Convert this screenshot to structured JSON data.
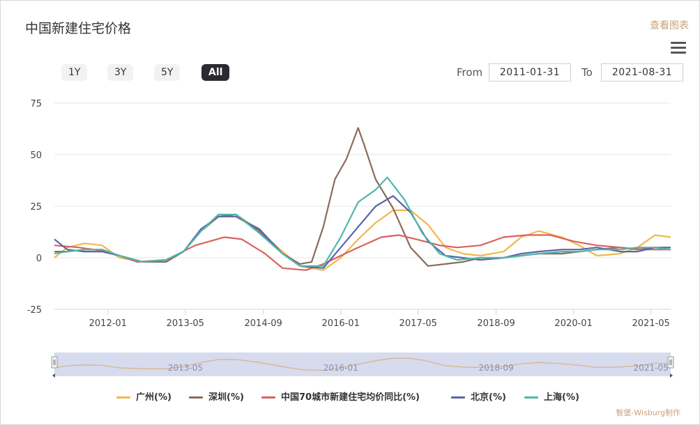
{
  "header": {
    "title": "中国新建住宅价格",
    "view_link": "查看图表"
  },
  "range_buttons": [
    "1Y",
    "3Y",
    "5Y",
    "All"
  ],
  "active_range": "All",
  "date_range": {
    "from_label": "From",
    "from_value": "2011-01-31",
    "to_label": "To",
    "to_value": "2021-08-31"
  },
  "credit": "智堡-Wisburg制作",
  "colors": {
    "guangzhou": "#f2b84b",
    "shenzhen": "#8b6b5c",
    "china70": "#d9625e",
    "beijing": "#5b63a8",
    "shanghai": "#4db8a8",
    "navigator_fill": "#cfd5ea",
    "navigator_line": "#d9b490"
  },
  "chart_data": {
    "type": "line",
    "title": "中国新建住宅价格",
    "x_range": [
      2011.08,
      2021.67
    ],
    "ylim": [
      -25,
      75
    ],
    "y_ticks": [
      -25,
      0,
      25,
      50,
      75
    ],
    "x_tick_labels": [
      "2012-01",
      "2013-05",
      "2014-09",
      "2016-01",
      "2017-05",
      "2018-09",
      "2020-01",
      "2021-05"
    ],
    "x_tick_values": [
      2012.0,
      2013.33,
      2014.67,
      2016.0,
      2017.33,
      2018.67,
      2020.0,
      2021.33
    ],
    "navigator_labels": [
      "2013-05",
      "2016-01",
      "2018-09",
      "2021-05"
    ],
    "legend_position": "bottom",
    "grid": true,
    "series": [
      {
        "name": "广州(%)",
        "color": "#f2b84b",
        "x": [
          2011.08,
          2011.3,
          2011.6,
          2011.9,
          2012.2,
          2012.6,
          2013.0,
          2013.3,
          2013.6,
          2013.9,
          2014.2,
          2014.6,
          2015.0,
          2015.3,
          2015.7,
          2016.0,
          2016.3,
          2016.6,
          2016.9,
          2017.2,
          2017.5,
          2017.8,
          2018.1,
          2018.4,
          2018.8,
          2019.1,
          2019.4,
          2019.8,
          2020.1,
          2020.4,
          2020.8,
          2021.1,
          2021.4,
          2021.67
        ],
        "y": [
          0,
          5,
          7,
          6,
          0,
          -2,
          -2,
          3,
          13,
          20,
          20,
          13,
          3,
          -4,
          -6,
          0,
          9,
          17,
          23,
          23,
          16,
          5,
          2,
          1,
          3,
          10,
          13,
          10,
          6,
          1,
          2,
          5,
          11,
          10
        ]
      },
      {
        "name": "深圳(%)",
        "color": "#8b6b5c",
        "x": [
          2011.08,
          2011.3,
          2011.6,
          2011.9,
          2012.2,
          2012.6,
          2013.0,
          2013.3,
          2013.6,
          2013.9,
          2014.2,
          2014.6,
          2015.0,
          2015.3,
          2015.5,
          2015.7,
          2015.9,
          2016.1,
          2016.3,
          2016.4,
          2016.6,
          2016.9,
          2017.2,
          2017.5,
          2017.8,
          2018.1,
          2018.4,
          2018.8,
          2019.1,
          2019.4,
          2019.8,
          2020.1,
          2020.4,
          2020.8,
          2021.1,
          2021.4,
          2021.67
        ],
        "y": [
          3,
          3,
          4,
          4,
          1,
          -2,
          -2,
          3,
          13,
          20,
          21,
          13,
          2,
          -3,
          -2,
          15,
          38,
          48,
          63,
          55,
          38,
          24,
          5,
          -4,
          -3,
          -2,
          0,
          0,
          1,
          2,
          2,
          3,
          4,
          5,
          4,
          5,
          4
        ]
      },
      {
        "name": "中国70城市新建住宅均价同比(%)",
        "color": "#d9625e",
        "x": [
          2011.08,
          2011.5,
          2012.0,
          2012.5,
          2013.0,
          2013.5,
          2014.0,
          2014.3,
          2014.7,
          2015.0,
          2015.4,
          2015.7,
          2016.0,
          2016.3,
          2016.7,
          2017.0,
          2017.3,
          2017.7,
          2018.0,
          2018.4,
          2018.8,
          2019.2,
          2019.6,
          2020.0,
          2020.4,
          2020.8,
          2021.2,
          2021.67
        ],
        "y": [
          6,
          5,
          3,
          -2,
          -1,
          6,
          10,
          9,
          2,
          -5,
          -6,
          -3,
          1,
          5,
          10,
          11,
          9,
          6,
          5,
          6,
          10,
          11,
          11,
          8,
          6,
          5,
          4,
          4
        ]
      },
      {
        "name": "北京(%)",
        "color": "#5b63a8",
        "x": [
          2011.08,
          2011.3,
          2011.6,
          2011.9,
          2012.2,
          2012.6,
          2013.0,
          2013.3,
          2013.6,
          2013.9,
          2014.2,
          2014.6,
          2015.0,
          2015.3,
          2015.7,
          2016.0,
          2016.3,
          2016.6,
          2016.9,
          2017.2,
          2017.5,
          2017.8,
          2018.1,
          2018.4,
          2018.8,
          2019.1,
          2019.4,
          2019.8,
          2020.1,
          2020.4,
          2020.8,
          2021.1,
          2021.4,
          2021.67
        ],
        "y": [
          9,
          4,
          3,
          3,
          1,
          -2,
          -1,
          3,
          14,
          20,
          20,
          14,
          2,
          -4,
          -5,
          5,
          15,
          25,
          30,
          22,
          8,
          1,
          0,
          -1,
          0,
          2,
          3,
          4,
          4,
          5,
          3,
          3,
          5,
          5
        ]
      },
      {
        "name": "上海(%)",
        "color": "#4db8a8",
        "x": [
          2011.08,
          2011.3,
          2011.6,
          2011.9,
          2012.2,
          2012.6,
          2013.0,
          2013.3,
          2013.6,
          2013.9,
          2014.2,
          2014.6,
          2015.0,
          2015.3,
          2015.7,
          2016.0,
          2016.3,
          2016.6,
          2016.8,
          2017.1,
          2017.4,
          2017.7,
          2018.0,
          2018.4,
          2018.8,
          2019.1,
          2019.4,
          2019.8,
          2020.1,
          2020.4,
          2020.8,
          2021.1,
          2021.4,
          2021.67
        ],
        "y": [
          2,
          3,
          4,
          4,
          1,
          -2,
          -1,
          3,
          13,
          21,
          21,
          12,
          2,
          -4,
          -4,
          10,
          27,
          33,
          39,
          28,
          12,
          2,
          -1,
          0,
          0,
          1,
          2,
          3,
          3,
          4,
          4,
          5,
          5,
          4
        ]
      }
    ]
  }
}
